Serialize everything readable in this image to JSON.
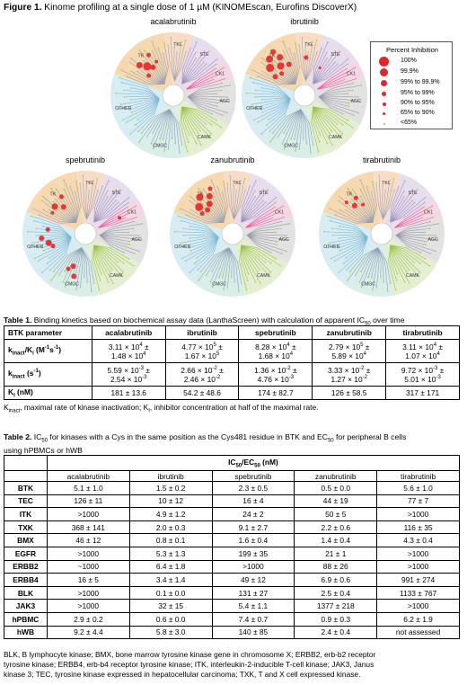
{
  "figure": {
    "label": "Figure 1.",
    "title": " Kinome profiling at a single dose of 1 µM (KINOMEscan, Eurofins DiscoverX)",
    "drugs": [
      "acalabrutinib",
      "ibrutinib",
      "spebrutinib",
      "zanubrutinib",
      "tirabrutinib"
    ],
    "families": [
      "TK",
      "TKL",
      "STE",
      "CK1",
      "AGC",
      "CAMK",
      "CMGC",
      "OTHER"
    ],
    "family_colors": {
      "TK": "#f6d9b0",
      "TKL": "#f8dcc8",
      "STE": "#e8dcef",
      "CK1": "#f4d6e4",
      "AGC": "#e2e2e2",
      "CAMK": "#e4efd2",
      "CMGC": "#d9eee9",
      "OTHER": "#d7ecf3"
    },
    "legend": {
      "title": "Percent Inhibition",
      "items": [
        "100%",
        "99.9%",
        "99% to 99.9%",
        "95% to 99%",
        "90% to 95%",
        "65% to 90%",
        "<65%"
      ]
    }
  },
  "table1": {
    "label": "Table 1.",
    "title": " Binding kinetics based on biochemical assay data (LanthaScreen) with calculation of apparent IC",
    "title_sub": "50",
    "title_end": " over time",
    "headers": [
      "BTK parameter",
      "acalabrutinib",
      "ibrutinib",
      "spebrutinib",
      "zanubrutinib",
      "tirabrutinib"
    ],
    "rows": [
      {
        "param_main": "k",
        "param_sub": "inact",
        "param_tail": "/K",
        "param_sub2": "i",
        "param_end": " (M",
        "param_sup": "-1",
        "param_end2": "s",
        "param_sup2": "-1",
        "param_close": ")",
        "cells": [
          [
            "3.11 × 10",
            "4",
            " ±",
            "1.48 × 10",
            "4"
          ],
          [
            "4.77 × 10",
            "5",
            " ±",
            "1.67 × 10",
            "5"
          ],
          [
            "8.28 × 10",
            "4",
            " ±",
            "1.68 × 10",
            "4"
          ],
          [
            "2.79 × 10",
            "5",
            " ±",
            "5.89 × 10",
            "4"
          ],
          [
            "3.11 × 10",
            "4",
            " ±",
            "1.07 × 10",
            "4"
          ]
        ]
      },
      {
        "param_main": "k",
        "param_sub": "inact",
        "param_end": " (s",
        "param_sup": "-1",
        "param_close": ")",
        "cells": [
          [
            "5.59 × 10",
            "-3",
            " ±",
            "2.54 × 10",
            "-3"
          ],
          [
            "2.66 × 10",
            "-2",
            " ±",
            "2.46 × 10",
            "-2"
          ],
          [
            "1.36 × 10",
            "-2",
            " ±",
            "4.76 × 10",
            "-3"
          ],
          [
            "3.33 × 10",
            "-2",
            " ±",
            "1.27 × 10",
            "-2"
          ],
          [
            "9.72 × 10",
            "-3",
            " ±",
            "5.01 × 10",
            "-3"
          ]
        ]
      },
      {
        "param_main": "K",
        "param_sub": "I",
        "param_end": " (nM)",
        "cells": [
          "181 ± 13.6",
          "54.2 ± 48.6",
          "174 ± 82.7",
          "126 ± 58.5",
          "317 ± 171"
        ]
      }
    ],
    "footnote_a": "K",
    "footnote_a_sub": "inact",
    "footnote_b": ", maximal rate of kinase inactivation; K",
    "footnote_b_sub": "I",
    "footnote_c": ", inhibitor concentration at half of the maximal rate."
  },
  "table2": {
    "label": "Table 2.",
    "title_a": " IC",
    "title_a_sub": "50",
    "title_b": " for kinases with a Cys in the same position as the Cys481 residue in BTK and EC",
    "title_b_sub": "50",
    "title_c": " for peripheral B cells",
    "title_line2": "using hPBMCs or hWB",
    "group_header": "IC",
    "group_sub1": "50",
    "group_mid": "/EC",
    "group_sub2": "50",
    "group_end": " (nM)",
    "headers": [
      "acalabrutinib",
      "ibrutinib",
      "spebrutinib",
      "zanubrutinib",
      "tirabrutinib"
    ],
    "rows": [
      {
        "name": "BTK",
        "values": [
          "5.1 ± 1.0",
          "1.5 ± 0.2",
          "2.3 ± 0.5",
          "0.5 ± 0.0",
          "5.6 ± 1.0"
        ]
      },
      {
        "name": "TEC",
        "values": [
          "126 ± 11",
          "10 ± 12",
          "16 ± 4",
          "44 ± 19",
          "77 ± 7"
        ]
      },
      {
        "name": "ITK",
        "values": [
          ">1000",
          "4.9 ± 1.2",
          "24 ± 2",
          "50 ± 5",
          ">1000"
        ]
      },
      {
        "name": "TXK",
        "values": [
          "368 ± 141",
          "2.0 ± 0.3",
          "9.1 ± 2.7",
          "2.2 ± 0.6",
          "116 ± 35"
        ]
      },
      {
        "name": "BMX",
        "values": [
          "46 ± 12",
          "0.8 ± 0.1",
          "1.6 ± 0.4",
          "1.4 ± 0.4",
          "4.3 ± 0.4"
        ]
      },
      {
        "name": "EGFR",
        "values": [
          ">1000",
          "5.3 ± 1.3",
          "199 ± 35",
          "21 ± 1",
          ">1000"
        ]
      },
      {
        "name": "ERBB2",
        "values": [
          "~1000",
          "6.4 ± 1.8",
          ">1000",
          "88 ± 26",
          ">1000"
        ]
      },
      {
        "name": "ERBB4",
        "values": [
          "16 ± 5",
          "3.4 ± 1.4",
          "49 ± 12",
          "6.9 ± 0.6",
          "991 ± 274"
        ]
      },
      {
        "name": "BLK",
        "values": [
          ">1000",
          "0.1 ± 0.0",
          "131 ± 27",
          "2.5 ± 0.4",
          "1133 ± 767"
        ]
      },
      {
        "name": "JAK3",
        "values": [
          ">1000",
          "32 ± 15",
          "5.4 ± 1.1",
          "1377 ± 218",
          ">1000"
        ]
      },
      {
        "name": "hPBMC",
        "values": [
          "2.9 ± 0.2",
          "0.6 ± 0.0",
          "7.4 ± 0.7",
          "0.9 ± 0.3",
          "6.2 ± 1.9"
        ]
      },
      {
        "name": "hWB",
        "values": [
          "9.2 ± 4.4",
          "5.8 ± 3.0",
          "140 ± 85",
          "2.4 ± 0.4",
          "not assessed"
        ]
      }
    ],
    "footnote_lines": [
      "BLK, B lymphocyte kinase; BMX, bone marrow tyrosine kinase gene in chromosome X; ERBB2, erb-b2 receptor",
      "tyrosine kinase; ERBB4, erb-b4 receptor tyrosine kinase; ITK, interleukin-2-inducible T-cell kinase; JAK3, Janus",
      "kinase 3; TEC, tyrosine kinase expressed in hepatocellular carcinoma; TXK, T and X cell expressed kinase."
    ]
  }
}
